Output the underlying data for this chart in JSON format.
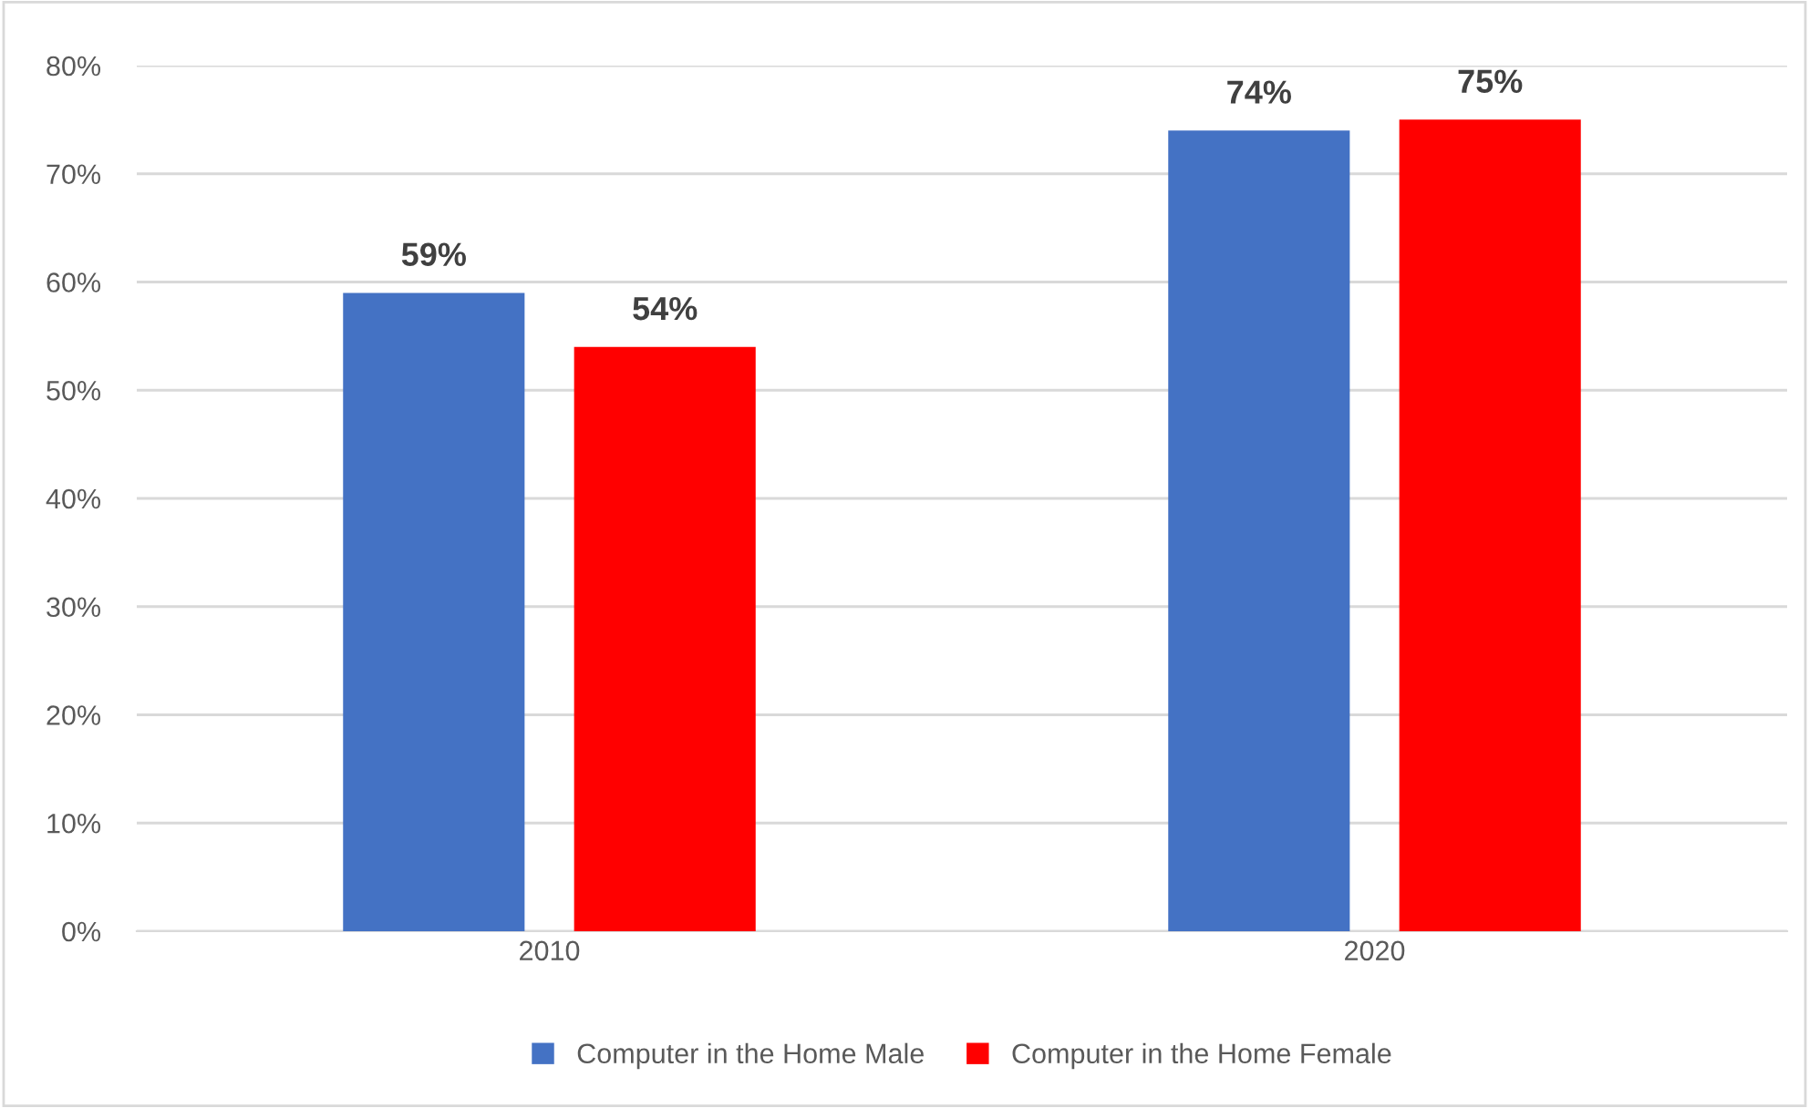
{
  "chart_data": {
    "type": "bar",
    "categories": [
      "2010",
      "2020"
    ],
    "series": [
      {
        "name": "Computer in the Home Male",
        "color": "#4472c4",
        "values": [
          59,
          74
        ],
        "value_labels": [
          "59%",
          "74%"
        ]
      },
      {
        "name": "Computer in the Home Female",
        "color": "#ff0000",
        "values": [
          54,
          75
        ],
        "value_labels": [
          "54%",
          "75%"
        ]
      }
    ],
    "ylim": [
      0,
      80
    ],
    "yticks": [
      {
        "value": 0,
        "label": "0%"
      },
      {
        "value": 10,
        "label": "10%"
      },
      {
        "value": 20,
        "label": "20%"
      },
      {
        "value": 30,
        "label": "30%"
      },
      {
        "value": 40,
        "label": "40%"
      },
      {
        "value": 50,
        "label": "50%"
      },
      {
        "value": 60,
        "label": "60%"
      },
      {
        "value": 70,
        "label": "70%"
      },
      {
        "value": 80,
        "label": "80%"
      }
    ],
    "grid": "y",
    "legend": "bottom"
  }
}
